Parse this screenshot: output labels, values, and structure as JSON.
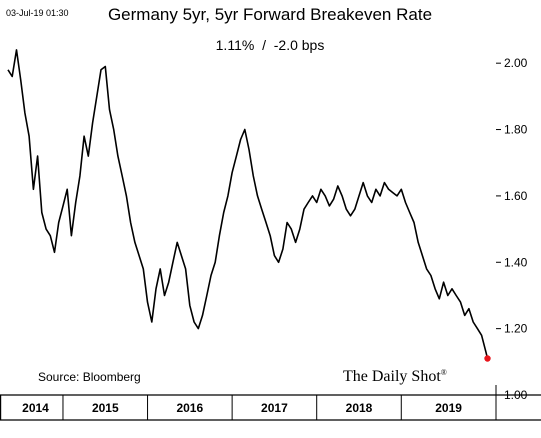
{
  "timestamp": "03-Jul-19 01:30",
  "brand": "The Daily Shot",
  "brand_mark": "®",
  "chart_data": {
    "type": "line",
    "title": "Germany 5yr, 5yr Forward Breakeven Rate",
    "subtitle": "1.11%  /  -2.0 bps",
    "source": "Source: Bloomberg",
    "y_range": [
      1.0,
      2.1
    ],
    "y_ticks": [
      "2.00",
      "1.80",
      "1.60",
      "1.40",
      "1.20",
      "1.00"
    ],
    "x_range": [
      2013.85,
      2019.62
    ],
    "year_labels": [
      {
        "label": "2014",
        "start": 2013.85,
        "end": 2014.5
      },
      {
        "label": "2015",
        "start": 2014.5,
        "end": 2015.5
      },
      {
        "label": "2016",
        "start": 2015.5,
        "end": 2016.5
      },
      {
        "label": "2017",
        "start": 2016.5,
        "end": 2017.5
      },
      {
        "label": "2018",
        "start": 2017.5,
        "end": 2018.5
      },
      {
        "label": "2019",
        "start": 2018.5,
        "end": 2019.62
      }
    ],
    "year_dividers": [
      2014.5,
      2015.5,
      2016.5,
      2017.5,
      2018.5
    ],
    "series": [
      {
        "color": "#000000",
        "x": [
          2013.85,
          2013.9,
          2013.95,
          2014.0,
          2014.05,
          2014.1,
          2014.15,
          2014.2,
          2014.25,
          2014.3,
          2014.35,
          2014.4,
          2014.45,
          2014.5,
          2014.55,
          2014.6,
          2014.65,
          2014.7,
          2014.75,
          2014.8,
          2014.85,
          2014.9,
          2014.95,
          2015.0,
          2015.05,
          2015.1,
          2015.15,
          2015.2,
          2015.25,
          2015.3,
          2015.35,
          2015.4,
          2015.45,
          2015.5,
          2015.55,
          2015.6,
          2015.65,
          2015.7,
          2015.75,
          2015.8,
          2015.85,
          2015.9,
          2015.95,
          2016.0,
          2016.05,
          2016.1,
          2016.15,
          2016.2,
          2016.25,
          2016.3,
          2016.35,
          2016.4,
          2016.45,
          2016.5,
          2016.55,
          2016.6,
          2016.65,
          2016.7,
          2016.75,
          2016.8,
          2016.85,
          2016.9,
          2016.95,
          2017.0,
          2017.05,
          2017.1,
          2017.15,
          2017.2,
          2017.25,
          2017.3,
          2017.35,
          2017.4,
          2017.45,
          2017.5,
          2017.55,
          2017.6,
          2017.65,
          2017.7,
          2017.75,
          2017.8,
          2017.85,
          2017.9,
          2017.95,
          2018.0,
          2018.05,
          2018.1,
          2018.15,
          2018.2,
          2018.25,
          2018.3,
          2018.35,
          2018.4,
          2018.45,
          2018.5,
          2018.55,
          2018.6,
          2018.65,
          2018.7,
          2018.75,
          2018.8,
          2018.85,
          2018.9,
          2018.95,
          2019.0,
          2019.05,
          2019.1,
          2019.15,
          2019.2,
          2019.25,
          2019.3,
          2019.35,
          2019.4,
          2019.45,
          2019.5,
          2019.52
        ],
        "y": [
          1.98,
          1.96,
          2.04,
          1.95,
          1.85,
          1.78,
          1.62,
          1.72,
          1.55,
          1.5,
          1.48,
          1.43,
          1.52,
          1.57,
          1.62,
          1.48,
          1.58,
          1.66,
          1.78,
          1.72,
          1.82,
          1.9,
          1.98,
          1.99,
          1.86,
          1.8,
          1.72,
          1.66,
          1.6,
          1.52,
          1.46,
          1.42,
          1.38,
          1.28,
          1.22,
          1.32,
          1.38,
          1.3,
          1.34,
          1.4,
          1.46,
          1.42,
          1.38,
          1.27,
          1.22,
          1.2,
          1.24,
          1.3,
          1.36,
          1.4,
          1.48,
          1.55,
          1.6,
          1.67,
          1.72,
          1.77,
          1.8,
          1.74,
          1.66,
          1.6,
          1.56,
          1.52,
          1.48,
          1.42,
          1.4,
          1.44,
          1.52,
          1.5,
          1.46,
          1.5,
          1.56,
          1.58,
          1.6,
          1.58,
          1.62,
          1.6,
          1.57,
          1.59,
          1.63,
          1.6,
          1.56,
          1.54,
          1.56,
          1.6,
          1.64,
          1.6,
          1.58,
          1.62,
          1.6,
          1.64,
          1.62,
          1.61,
          1.6,
          1.62,
          1.58,
          1.55,
          1.52,
          1.46,
          1.42,
          1.38,
          1.36,
          1.32,
          1.29,
          1.34,
          1.3,
          1.32,
          1.3,
          1.28,
          1.24,
          1.26,
          1.22,
          1.2,
          1.18,
          1.13,
          1.11
        ]
      }
    ],
    "last_point": {
      "x": 2019.52,
      "y": 1.11,
      "color": "#e8141b"
    }
  }
}
